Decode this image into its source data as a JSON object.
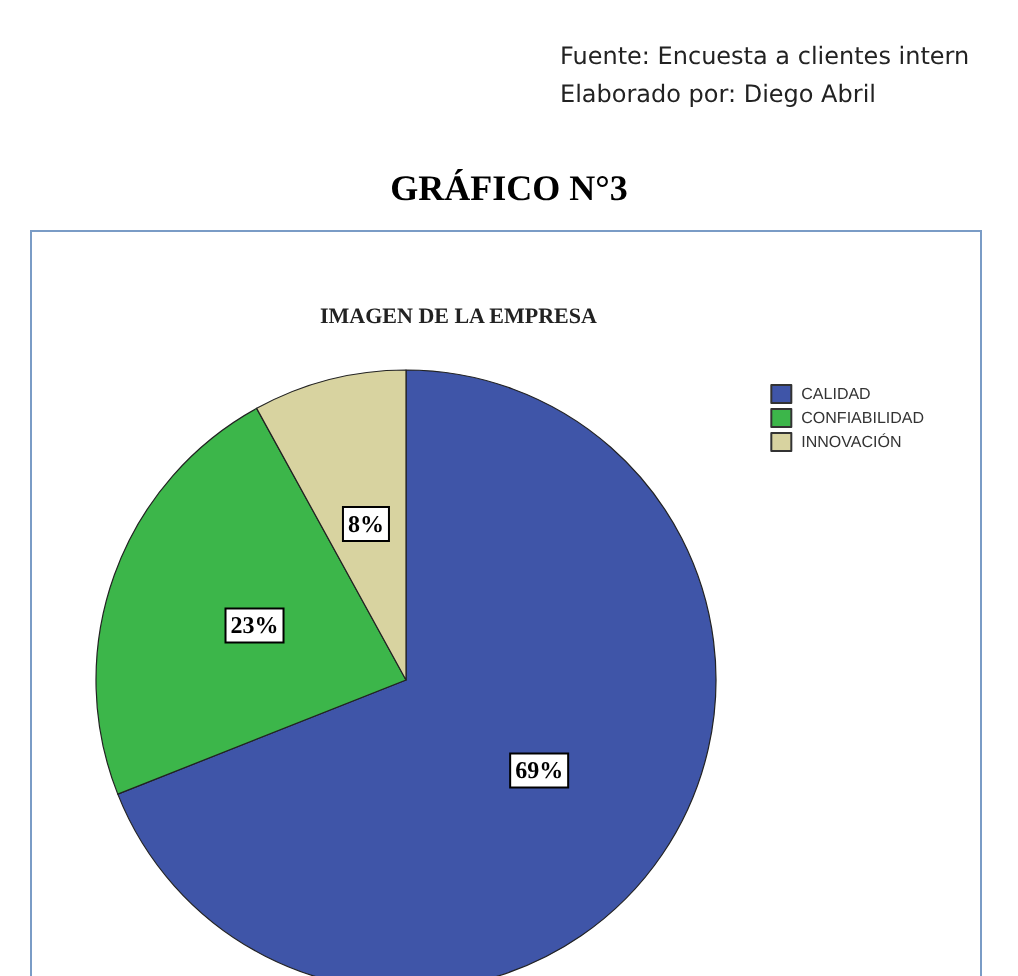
{
  "chart_data": {
    "type": "pie",
    "title": "GRÁFICO N°3",
    "subtitle": "IMAGEN DE LA EMPRESA",
    "annotations": [
      "Fuente: Encuesta a clientes intern",
      "Elaborado por: Diego Abril"
    ],
    "categories": [
      "CALIDAD",
      "CONFIABILIDAD",
      "INNOVACIÓN"
    ],
    "values": [
      69,
      23,
      8
    ],
    "colors": [
      "#3f55a8",
      "#3cb64a",
      "#d8d3a0"
    ],
    "value_labels": [
      "69%",
      "23%",
      "8%"
    ],
    "legend": "top right"
  }
}
